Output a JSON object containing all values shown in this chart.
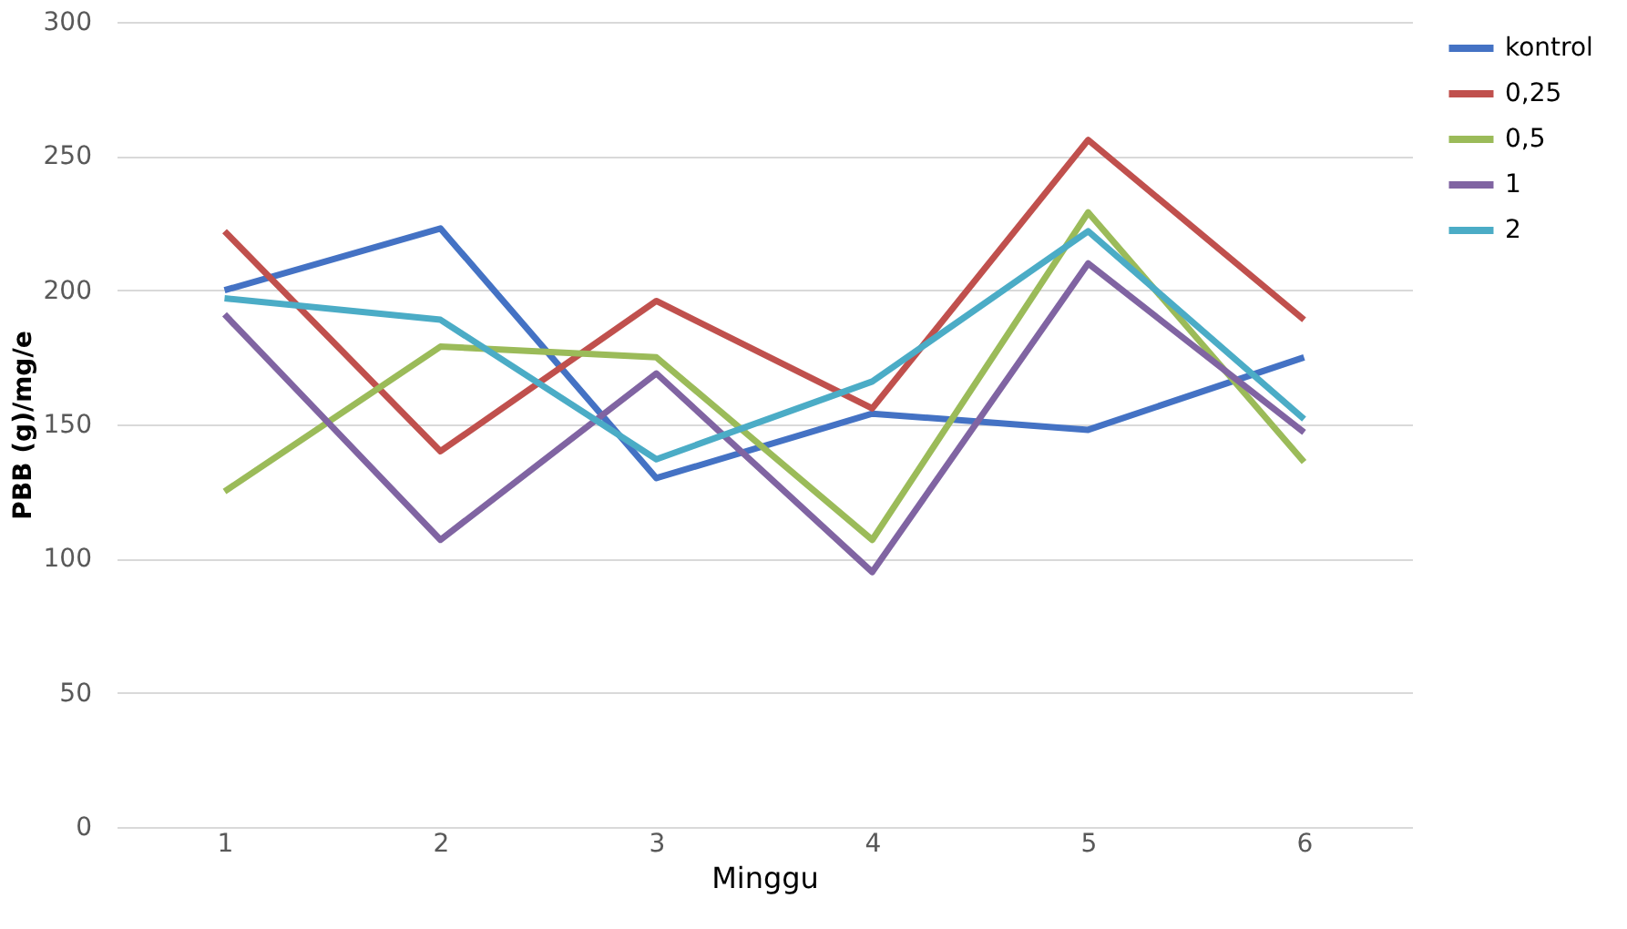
{
  "chart_data": {
    "type": "line",
    "xlabel": "Minggu",
    "ylabel": "PBB (g)/mg/e",
    "categories": [
      "1",
      "2",
      "3",
      "4",
      "5",
      "6"
    ],
    "series": [
      {
        "name": "kontrol",
        "color": "#4472c4",
        "values": [
          200,
          223,
          130,
          154,
          148,
          175
        ]
      },
      {
        "name": "0,25",
        "color": "#c0504d",
        "values": [
          222,
          140,
          196,
          156,
          256,
          189
        ]
      },
      {
        "name": "0,5",
        "color": "#9bbb59",
        "values": [
          125,
          179,
          175,
          107,
          229,
          136
        ]
      },
      {
        "name": "1",
        "color": "#8064a2",
        "values": [
          191,
          107,
          169,
          95,
          210,
          147
        ]
      },
      {
        "name": "2",
        "color": "#4bacc6",
        "values": [
          197,
          189,
          137,
          166,
          222,
          152
        ]
      }
    ],
    "ylim": [
      0,
      300
    ],
    "yticks": [
      0,
      50,
      100,
      150,
      200,
      250,
      300
    ],
    "grid": "y",
    "legend": "right",
    "marker": "none",
    "line_style": "solid"
  }
}
